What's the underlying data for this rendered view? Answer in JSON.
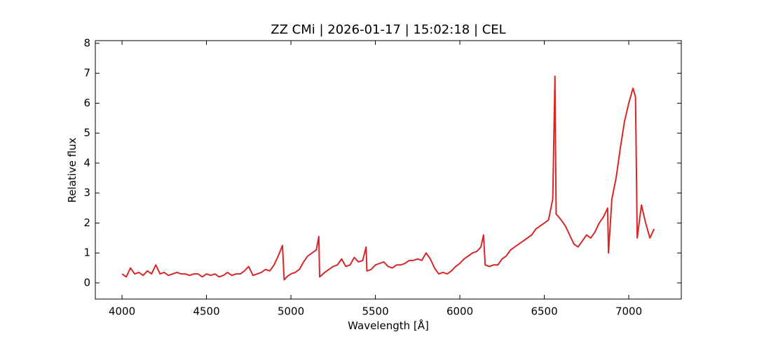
{
  "chart_data": {
    "type": "line",
    "title": "ZZ CMi | 2026-01-17 | 15:02:18 | CEL",
    "x_label": "Wavelength [Å]",
    "y_label": "Relative flux",
    "x": [
      4000,
      4025,
      4050,
      4075,
      4100,
      4125,
      4150,
      4175,
      4200,
      4225,
      4250,
      4275,
      4300,
      4325,
      4350,
      4375,
      4400,
      4425,
      4450,
      4475,
      4500,
      4525,
      4550,
      4575,
      4600,
      4625,
      4650,
      4675,
      4700,
      4725,
      4750,
      4775,
      4800,
      4825,
      4850,
      4875,
      4900,
      4925,
      4950,
      4960,
      4975,
      5000,
      5025,
      5050,
      5075,
      5100,
      5125,
      5150,
      5165,
      5170,
      5200,
      5225,
      5250,
      5275,
      5300,
      5325,
      5350,
      5375,
      5400,
      5425,
      5445,
      5450,
      5475,
      5500,
      5525,
      5550,
      5575,
      5600,
      5625,
      5650,
      5675,
      5700,
      5725,
      5750,
      5775,
      5800,
      5825,
      5850,
      5875,
      5900,
      5925,
      5950,
      5975,
      6000,
      6025,
      6050,
      6075,
      6100,
      6125,
      6140,
      6150,
      6175,
      6200,
      6225,
      6250,
      6275,
      6300,
      6325,
      6350,
      6375,
      6400,
      6425,
      6450,
      6475,
      6500,
      6525,
      6550,
      6563,
      6570,
      6600,
      6625,
      6650,
      6675,
      6700,
      6725,
      6750,
      6775,
      6800,
      6825,
      6850,
      6875,
      6880,
      6900,
      6925,
      6950,
      6975,
      7000,
      7025,
      7040,
      7050,
      7075,
      7100,
      7125,
      7150
    ],
    "series": [
      {
        "name": "flux",
        "color": "#d62728",
        "values": [
          0.3,
          0.2,
          0.5,
          0.3,
          0.35,
          0.25,
          0.4,
          0.3,
          0.6,
          0.3,
          0.35,
          0.25,
          0.3,
          0.35,
          0.3,
          0.3,
          0.25,
          0.3,
          0.3,
          0.2,
          0.3,
          0.25,
          0.3,
          0.2,
          0.25,
          0.35,
          0.25,
          0.3,
          0.3,
          0.4,
          0.55,
          0.25,
          0.3,
          0.35,
          0.45,
          0.4,
          0.6,
          0.9,
          1.25,
          0.1,
          0.2,
          0.3,
          0.35,
          0.45,
          0.7,
          0.9,
          1.0,
          1.1,
          1.55,
          0.2,
          0.35,
          0.45,
          0.55,
          0.6,
          0.8,
          0.55,
          0.6,
          0.85,
          0.7,
          0.75,
          1.2,
          0.4,
          0.45,
          0.6,
          0.65,
          0.7,
          0.55,
          0.5,
          0.6,
          0.6,
          0.65,
          0.75,
          0.75,
          0.8,
          0.75,
          1.0,
          0.8,
          0.5,
          0.3,
          0.35,
          0.3,
          0.4,
          0.55,
          0.65,
          0.8,
          0.9,
          1.0,
          1.05,
          1.2,
          1.6,
          0.6,
          0.55,
          0.6,
          0.6,
          0.8,
          0.9,
          1.1,
          1.2,
          1.3,
          1.4,
          1.5,
          1.6,
          1.8,
          1.9,
          2.0,
          2.1,
          2.8,
          6.9,
          2.3,
          2.1,
          1.9,
          1.6,
          1.3,
          1.2,
          1.4,
          1.6,
          1.5,
          1.7,
          2.0,
          2.2,
          2.5,
          1.0,
          2.8,
          3.5,
          4.5,
          5.4,
          6.0,
          6.5,
          6.2,
          1.5,
          2.6,
          2.0,
          1.5,
          1.8
        ]
      }
    ],
    "xlim": [
      3842,
      7311
    ],
    "ylim": [
      -0.54,
      8.09
    ],
    "xticks": [
      4000,
      4500,
      5000,
      5500,
      6000,
      6500,
      7000
    ],
    "yticks": [
      0,
      1,
      2,
      3,
      4,
      5,
      6,
      7,
      8
    ]
  }
}
